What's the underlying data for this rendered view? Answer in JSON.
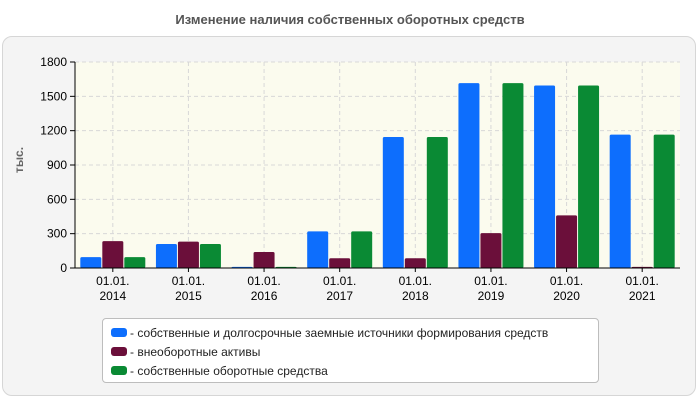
{
  "chart_data": {
    "type": "bar",
    "title": "Изменение наличия собственных оборотных средств",
    "ylabel": "тыс.",
    "xlabel": "",
    "ylim": [
      0,
      1800
    ],
    "yticks": [
      "0",
      "300",
      "600",
      "900",
      "1200",
      "1500",
      "1800"
    ],
    "categories": [
      [
        "01.01.",
        "2014"
      ],
      [
        "01.01.",
        "2015"
      ],
      [
        "01.01.",
        "2016"
      ],
      [
        "01.01.",
        "2017"
      ],
      [
        "01.01.",
        "2018"
      ],
      [
        "01.01.",
        "2019"
      ],
      [
        "01.01.",
        "2020"
      ],
      [
        "01.01.",
        "2021"
      ]
    ],
    "grid": true,
    "legend_position": "bottom",
    "series": [
      {
        "name": "собственные и долгосрочные заемные источники формирования средств",
        "color": "#0d6efd",
        "values": [
          95,
          210,
          10,
          320,
          1145,
          1615,
          1595,
          1165
        ]
      },
      {
        "name": "внеоборотные активы",
        "color": "#6b0f3a",
        "values": [
          235,
          230,
          140,
          85,
          85,
          305,
          460,
          10
        ]
      },
      {
        "name": "собственные оборотные средства",
        "color": "#0a8a34",
        "values": [
          95,
          210,
          10,
          320,
          1145,
          1615,
          1595,
          1165
        ]
      }
    ]
  }
}
